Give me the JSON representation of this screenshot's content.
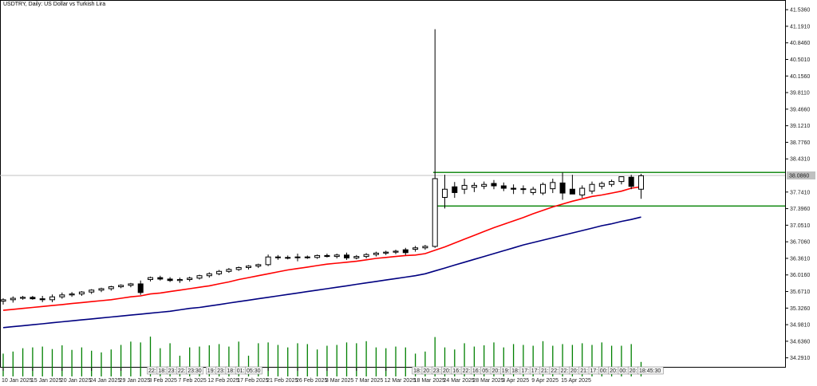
{
  "chart_data": {
    "type": "candlestick",
    "title": "USDTRY, Daily:  US Dollar vs Turkish Lira",
    "price_axis": {
      "labels": [
        "41.5360",
        "41.1910",
        "40.8460",
        "40.5010",
        "40.1560",
        "39.8110",
        "39.4660",
        "39.1210",
        "38.7760",
        "38.4310",
        "37.7410",
        "37.3960",
        "37.0510",
        "36.7060",
        "36.3610",
        "36.0160",
        "35.6710",
        "35.3260",
        "34.9810",
        "34.6360",
        "34.2910"
      ],
      "min": 34.186,
      "max": 41.638
    },
    "current_price": "38.0860",
    "date_labels": [
      {
        "i": 0,
        "text": "10 Jan 2025"
      },
      {
        "i": 3,
        "text": "15 Jan 2025"
      },
      {
        "i": 6,
        "text": "20 Jan 2025"
      },
      {
        "i": 9,
        "text": "24 Jan 2025"
      },
      {
        "i": 12,
        "text": "29 Jan 2025"
      },
      {
        "i": 15,
        "text": "3 Feb 2025"
      },
      {
        "i": 18,
        "text": "7 Feb 2025"
      },
      {
        "i": 21,
        "text": "12 Feb 2025"
      },
      {
        "i": 24,
        "text": "17 Feb 2025"
      },
      {
        "i": 27,
        "text": "21 Feb 2025"
      },
      {
        "i": 30,
        "text": "26 Feb 2025"
      },
      {
        "i": 33,
        "text": "3 Mar 2025"
      },
      {
        "i": 36,
        "text": "7 Mar 2025"
      },
      {
        "i": 39,
        "text": "12 Mar 2025"
      },
      {
        "i": 42,
        "text": "18 Mar 2025"
      },
      {
        "i": 45,
        "text": "24 Mar 2025"
      },
      {
        "i": 48,
        "text": "28 Mar 2025"
      },
      {
        "i": 51,
        "text": "3 Apr 2025"
      },
      {
        "i": 54,
        "text": "9 Apr 2025"
      },
      {
        "i": 57,
        "text": "15 Apr 2025"
      }
    ],
    "candles": [
      {
        "o": 35.47,
        "h": 35.53,
        "l": 35.4,
        "c": 35.5
      },
      {
        "o": 35.5,
        "h": 35.57,
        "l": 35.44,
        "c": 35.53
      },
      {
        "o": 35.53,
        "h": 35.58,
        "l": 35.5,
        "c": 35.55
      },
      {
        "o": 35.55,
        "h": 35.58,
        "l": 35.5,
        "c": 35.52
      },
      {
        "o": 35.52,
        "h": 35.58,
        "l": 35.45,
        "c": 35.5
      },
      {
        "o": 35.5,
        "h": 35.61,
        "l": 35.45,
        "c": 35.56
      },
      {
        "o": 35.56,
        "h": 35.65,
        "l": 35.52,
        "c": 35.6
      },
      {
        "o": 35.6,
        "h": 35.66,
        "l": 35.56,
        "c": 35.62
      },
      {
        "o": 35.62,
        "h": 35.68,
        "l": 35.58,
        "c": 35.66
      },
      {
        "o": 35.66,
        "h": 35.72,
        "l": 35.62,
        "c": 35.7
      },
      {
        "o": 35.7,
        "h": 35.75,
        "l": 35.66,
        "c": 35.73
      },
      {
        "o": 35.73,
        "h": 35.79,
        "l": 35.69,
        "c": 35.77
      },
      {
        "o": 35.77,
        "h": 35.82,
        "l": 35.74,
        "c": 35.8
      },
      {
        "o": 35.8,
        "h": 35.85,
        "l": 35.76,
        "c": 35.83
      },
      {
        "o": 35.83,
        "h": 35.9,
        "l": 35.6,
        "c": 35.65
      },
      {
        "o": 35.92,
        "h": 35.98,
        "l": 35.88,
        "c": 35.96
      },
      {
        "o": 35.96,
        "h": 36.0,
        "l": 35.9,
        "c": 35.93
      },
      {
        "o": 35.93,
        "h": 35.97,
        "l": 35.87,
        "c": 35.9
      },
      {
        "o": 35.9,
        "h": 35.96,
        "l": 35.85,
        "c": 35.92
      },
      {
        "o": 35.92,
        "h": 35.98,
        "l": 35.88,
        "c": 35.95
      },
      {
        "o": 35.95,
        "h": 36.02,
        "l": 35.92,
        "c": 36.0
      },
      {
        "o": 36.0,
        "h": 36.07,
        "l": 35.96,
        "c": 36.04
      },
      {
        "o": 36.04,
        "h": 36.12,
        "l": 36.01,
        "c": 36.09
      },
      {
        "o": 36.09,
        "h": 36.16,
        "l": 36.06,
        "c": 36.13
      },
      {
        "o": 36.13,
        "h": 36.19,
        "l": 36.1,
        "c": 36.17
      },
      {
        "o": 36.17,
        "h": 36.22,
        "l": 36.13,
        "c": 36.2
      },
      {
        "o": 36.2,
        "h": 36.25,
        "l": 36.16,
        "c": 36.23
      },
      {
        "o": 36.23,
        "h": 36.44,
        "l": 36.2,
        "c": 36.39
      },
      {
        "o": 36.39,
        "h": 36.43,
        "l": 36.33,
        "c": 36.38
      },
      {
        "o": 36.38,
        "h": 36.42,
        "l": 36.34,
        "c": 36.38
      },
      {
        "o": 36.38,
        "h": 36.46,
        "l": 36.3,
        "c": 36.39
      },
      {
        "o": 36.39,
        "h": 36.42,
        "l": 36.35,
        "c": 36.38
      },
      {
        "o": 36.38,
        "h": 36.44,
        "l": 36.35,
        "c": 36.42
      },
      {
        "o": 36.42,
        "h": 36.46,
        "l": 36.38,
        "c": 36.4
      },
      {
        "o": 36.4,
        "h": 36.46,
        "l": 36.36,
        "c": 36.43
      },
      {
        "o": 36.43,
        "h": 36.48,
        "l": 36.33,
        "c": 36.37
      },
      {
        "o": 36.37,
        "h": 36.43,
        "l": 36.34,
        "c": 36.4
      },
      {
        "o": 36.4,
        "h": 36.47,
        "l": 36.36,
        "c": 36.44
      },
      {
        "o": 36.44,
        "h": 36.5,
        "l": 36.4,
        "c": 36.47
      },
      {
        "o": 36.47,
        "h": 36.52,
        "l": 36.43,
        "c": 36.49
      },
      {
        "o": 36.49,
        "h": 36.54,
        "l": 36.45,
        "c": 36.51
      },
      {
        "o": 36.54,
        "h": 36.58,
        "l": 36.43,
        "c": 36.48
      },
      {
        "o": 36.55,
        "h": 36.62,
        "l": 36.5,
        "c": 36.58
      },
      {
        "o": 36.58,
        "h": 36.64,
        "l": 36.54,
        "c": 36.61
      },
      {
        "o": 36.61,
        "h": 41.13,
        "l": 36.58,
        "c": 38.02
      },
      {
        "o": 37.63,
        "h": 38.1,
        "l": 37.4,
        "c": 37.8
      },
      {
        "o": 37.85,
        "h": 37.95,
        "l": 37.62,
        "c": 37.73
      },
      {
        "o": 37.8,
        "h": 38.02,
        "l": 37.7,
        "c": 37.88
      },
      {
        "o": 37.84,
        "h": 37.94,
        "l": 37.74,
        "c": 37.88
      },
      {
        "o": 37.86,
        "h": 37.96,
        "l": 37.8,
        "c": 37.9
      },
      {
        "o": 37.92,
        "h": 37.99,
        "l": 37.8,
        "c": 37.87
      },
      {
        "o": 37.87,
        "h": 37.94,
        "l": 37.76,
        "c": 37.82
      },
      {
        "o": 37.82,
        "h": 37.9,
        "l": 37.7,
        "c": 37.8
      },
      {
        "o": 37.8,
        "h": 37.88,
        "l": 37.7,
        "c": 37.81
      },
      {
        "o": 37.73,
        "h": 37.85,
        "l": 37.68,
        "c": 37.8
      },
      {
        "o": 37.72,
        "h": 37.94,
        "l": 37.68,
        "c": 37.9
      },
      {
        "o": 37.81,
        "h": 38.02,
        "l": 37.72,
        "c": 37.94
      },
      {
        "o": 37.93,
        "h": 38.15,
        "l": 37.58,
        "c": 37.72
      },
      {
        "o": 37.8,
        "h": 38.1,
        "l": 37.7,
        "c": 37.7
      },
      {
        "o": 37.68,
        "h": 37.88,
        "l": 37.62,
        "c": 37.82
      },
      {
        "o": 37.76,
        "h": 37.96,
        "l": 37.7,
        "c": 37.9
      },
      {
        "o": 37.86,
        "h": 37.96,
        "l": 37.8,
        "c": 37.92
      },
      {
        "o": 37.9,
        "h": 38.0,
        "l": 37.85,
        "c": 37.96
      },
      {
        "o": 37.96,
        "h": 38.06,
        "l": 37.9,
        "c": 38.06
      },
      {
        "o": 38.05,
        "h": 38.1,
        "l": 37.8,
        "c": 37.86
      },
      {
        "o": 37.8,
        "h": 38.12,
        "l": 37.6,
        "c": 38.08
      }
    ],
    "ma_fast": [
      35.28,
      35.3,
      35.32,
      35.34,
      35.36,
      35.38,
      35.4,
      35.42,
      35.44,
      35.46,
      35.48,
      35.5,
      35.53,
      35.56,
      35.58,
      35.62,
      35.64,
      35.67,
      35.7,
      35.73,
      35.76,
      35.79,
      35.83,
      35.87,
      35.92,
      35.96,
      36.0,
      36.04,
      36.08,
      36.12,
      36.15,
      36.18,
      36.21,
      36.24,
      36.26,
      36.28,
      36.3,
      36.33,
      36.36,
      36.38,
      36.4,
      36.42,
      36.43,
      36.46,
      36.53,
      36.6,
      36.68,
      36.76,
      36.84,
      36.92,
      37.0,
      37.07,
      37.14,
      37.21,
      37.29,
      37.36,
      37.43,
      37.49,
      37.55,
      37.6,
      37.65,
      37.68,
      37.72,
      37.76,
      37.82,
      37.85
    ],
    "ma_slow": [
      34.92,
      34.94,
      34.96,
      34.98,
      35.0,
      35.02,
      35.04,
      35.06,
      35.08,
      35.1,
      35.12,
      35.14,
      35.16,
      35.18,
      35.2,
      35.22,
      35.24,
      35.26,
      35.29,
      35.32,
      35.34,
      35.37,
      35.4,
      35.43,
      35.46,
      35.49,
      35.52,
      35.55,
      35.58,
      35.61,
      35.64,
      35.67,
      35.7,
      35.73,
      35.76,
      35.79,
      35.82,
      35.85,
      35.88,
      35.91,
      35.94,
      35.97,
      36.0,
      36.04,
      36.1,
      36.16,
      36.22,
      36.28,
      36.34,
      36.4,
      36.46,
      36.52,
      36.58,
      36.64,
      36.69,
      36.74,
      36.79,
      36.84,
      36.89,
      36.94,
      36.99,
      37.04,
      37.08,
      37.13,
      37.17,
      37.22
    ],
    "volume": [
      0.55,
      0.6,
      0.68,
      0.7,
      0.72,
      0.66,
      0.75,
      0.64,
      0.7,
      0.62,
      0.58,
      0.65,
      0.76,
      0.84,
      0.82,
      0.96,
      0.68,
      0.8,
      0.5,
      0.7,
      0.72,
      0.75,
      0.78,
      0.72,
      0.84,
      0.5,
      0.8,
      0.82,
      0.76,
      0.7,
      0.8,
      0.78,
      0.65,
      0.74,
      0.76,
      0.82,
      0.8,
      0.85,
      0.7,
      0.68,
      0.72,
      0.7,
      0.55,
      0.6,
      0.95,
      0.7,
      0.65,
      0.8,
      0.72,
      0.75,
      0.82,
      0.7,
      0.78,
      0.76,
      0.74,
      0.85,
      0.74,
      0.78,
      0.76,
      0.8,
      0.76,
      0.82,
      0.74,
      0.74,
      0.78,
      0.35
    ],
    "levels": [
      {
        "price": 38.15,
        "from": 43
      },
      {
        "price": 37.45,
        "from": 43
      }
    ],
    "session_labels": [
      {
        "i": 15,
        "text": "22:"
      },
      {
        "i": 16,
        "text": "18:"
      },
      {
        "i": 17,
        "text": "23:"
      },
      {
        "i": 18,
        "text": "22:"
      },
      {
        "i": 19,
        "text": "23:30"
      },
      {
        "i": 21,
        "text": "19:"
      },
      {
        "i": 22,
        "text": "23:"
      },
      {
        "i": 23,
        "text": "18:"
      },
      {
        "i": 24,
        "text": "01:"
      },
      {
        "i": 25,
        "text": "05:30"
      },
      {
        "i": 42,
        "text": "18:"
      },
      {
        "i": 43,
        "text": "20:"
      },
      {
        "i": 44,
        "text": "23:"
      },
      {
        "i": 45,
        "text": "20:"
      },
      {
        "i": 46,
        "text": "16:"
      },
      {
        "i": 47,
        "text": "22:"
      },
      {
        "i": 48,
        "text": "16:"
      },
      {
        "i": 49,
        "text": "05:"
      },
      {
        "i": 50,
        "text": "20:"
      },
      {
        "i": 51,
        "text": "19:"
      },
      {
        "i": 52,
        "text": "18:"
      },
      {
        "i": 53,
        "text": "17:"
      },
      {
        "i": 54,
        "text": "17:"
      },
      {
        "i": 55,
        "text": "21:"
      },
      {
        "i": 56,
        "text": "22:"
      },
      {
        "i": 57,
        "text": "22:"
      },
      {
        "i": 58,
        "text": "20:"
      },
      {
        "i": 59,
        "text": "21:"
      },
      {
        "i": 60,
        "text": "17:"
      },
      {
        "i": 61,
        "text": "00:"
      },
      {
        "i": 62,
        "text": "20:"
      },
      {
        "i": 63,
        "text": "00:"
      },
      {
        "i": 64,
        "text": "20:"
      },
      {
        "i": 65,
        "text": "18:45:30"
      }
    ],
    "colors": {
      "bull_body": "#ffffff",
      "bear_body": "#000000",
      "wick": "#000000",
      "ma_fast": "#ff0000",
      "ma_slow": "#000080",
      "volume": "#008000",
      "level": "#008000",
      "price_line": "#c0c0c0",
      "price_tag": "#c0c0c0",
      "session_tag": "#ff0000"
    }
  }
}
